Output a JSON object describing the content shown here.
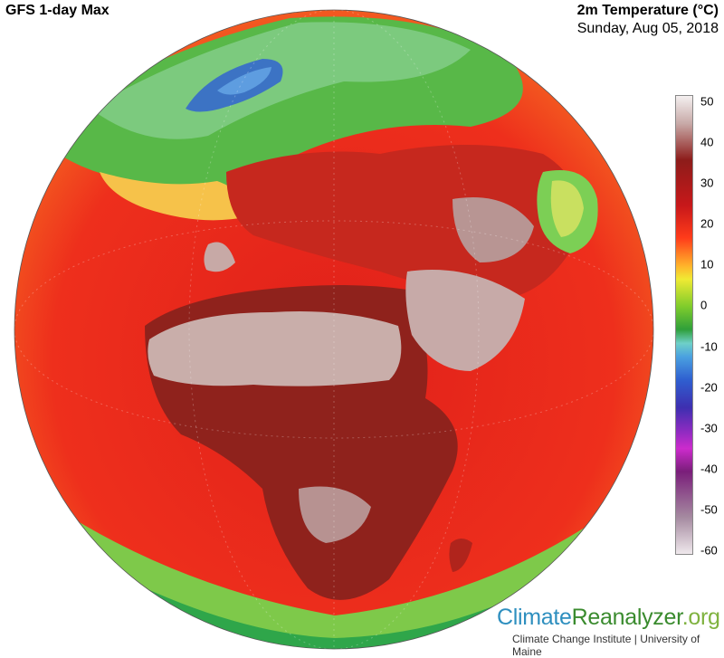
{
  "header": {
    "left_title": "GFS 1-day Max",
    "right_title": "2m Temperature (°C)",
    "date": "Sunday, Aug 05, 2018"
  },
  "legend": {
    "ticks": [
      "50",
      "40",
      "30",
      "20",
      "10",
      "0",
      "-10",
      "-20",
      "-30",
      "-40",
      "-50",
      "-60"
    ]
  },
  "colors": {
    "ocean_warm": "#e8231b",
    "hot": "#9e2a22",
    "extreme": "#c9b2b0",
    "cool": "#4caf50",
    "cold": "#3b6fc9",
    "brand_blue": "#2e8fbf",
    "brand_green": "#3a8b2e"
  },
  "branding": {
    "part1": "Climate",
    "part2": "Reanalyzer",
    "part3": ".org",
    "subline": "Climate Change Institute | University of Maine"
  }
}
